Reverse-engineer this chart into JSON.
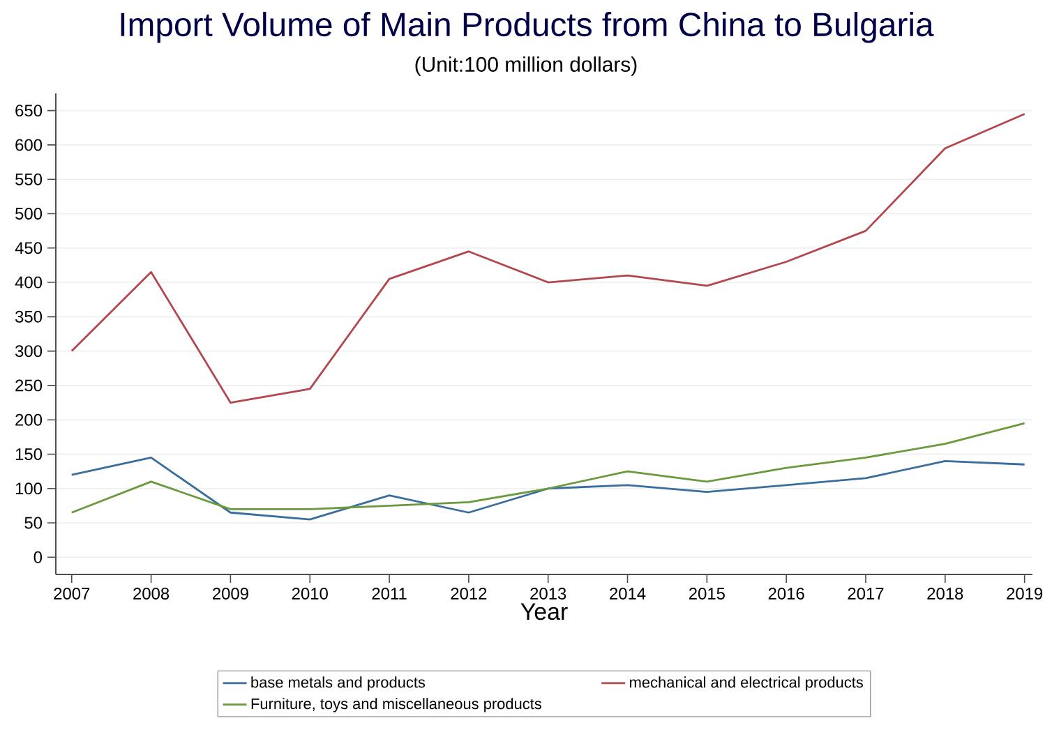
{
  "chart_data": {
    "type": "line",
    "title": "Import Volume of Main Products from China to Bulgaria",
    "subtitle": "(Unit:100 million dollars)",
    "xlabel": "Year",
    "x": [
      2007,
      2008,
      2009,
      2010,
      2011,
      2012,
      2013,
      2014,
      2015,
      2016,
      2017,
      2018,
      2019
    ],
    "series": [
      {
        "name": "base metals and products",
        "color": "#3a6e9c",
        "values": [
          120,
          145,
          65,
          55,
          90,
          65,
          100,
          105,
          95,
          105,
          115,
          140,
          135
        ]
      },
      {
        "name": "mechanical and electrical products",
        "color": "#b3474e",
        "values": [
          300,
          415,
          225,
          245,
          405,
          445,
          400,
          410,
          395,
          430,
          475,
          595,
          645
        ]
      },
      {
        "name": "Furniture, toys and miscellaneous products",
        "color": "#6a9a3c",
        "values": [
          65,
          110,
          70,
          70,
          75,
          80,
          100,
          125,
          110,
          130,
          145,
          165,
          195
        ]
      }
    ],
    "xlim": [
      2006.8,
      2019.1
    ],
    "ylim": [
      -25,
      675
    ],
    "xticks": [
      2007,
      2008,
      2009,
      2010,
      2011,
      2012,
      2013,
      2014,
      2015,
      2016,
      2017,
      2018,
      2019
    ],
    "yticks": [
      0,
      50,
      100,
      150,
      200,
      250,
      300,
      350,
      400,
      450,
      500,
      550,
      600,
      650
    ],
    "grid": "y",
    "legend": "bottom",
    "marker": "none",
    "line_style": "solid"
  }
}
